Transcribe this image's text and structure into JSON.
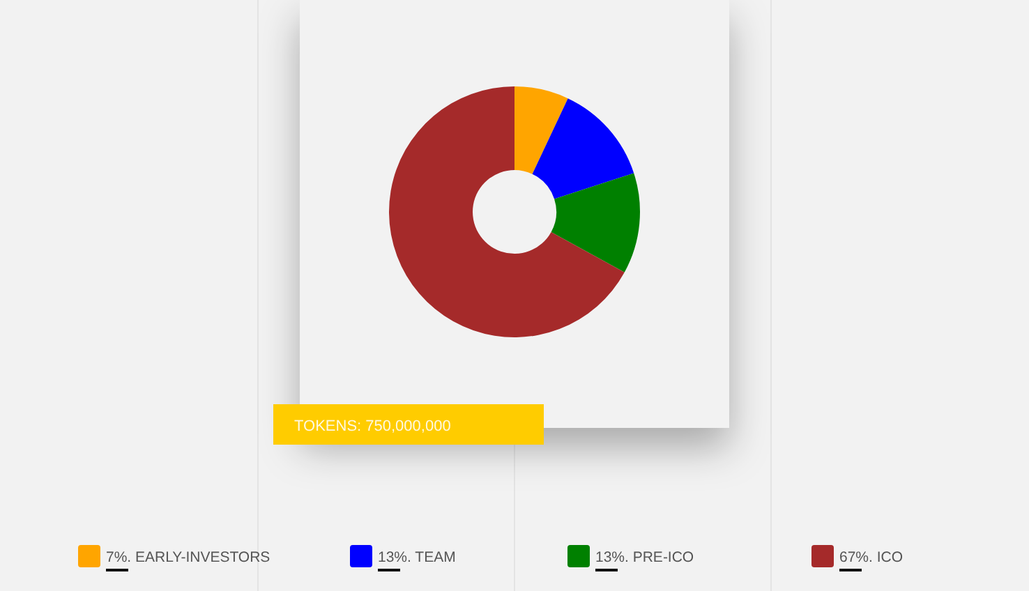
{
  "chart_data": {
    "type": "donut",
    "categories": [
      "EARLY-INVESTORS",
      "TEAM",
      "PRE-ICO",
      "ICO"
    ],
    "values": [
      7,
      13,
      13,
      67
    ],
    "colors": [
      "#ffa500",
      "#0000ff",
      "#008000",
      "#a52a2a"
    ],
    "value_labels": [
      "7%.",
      "13%.",
      "13%.",
      "67%."
    ],
    "legend": "bottom",
    "annotations": [
      "TOKENS: 750,000,000"
    ]
  }
}
